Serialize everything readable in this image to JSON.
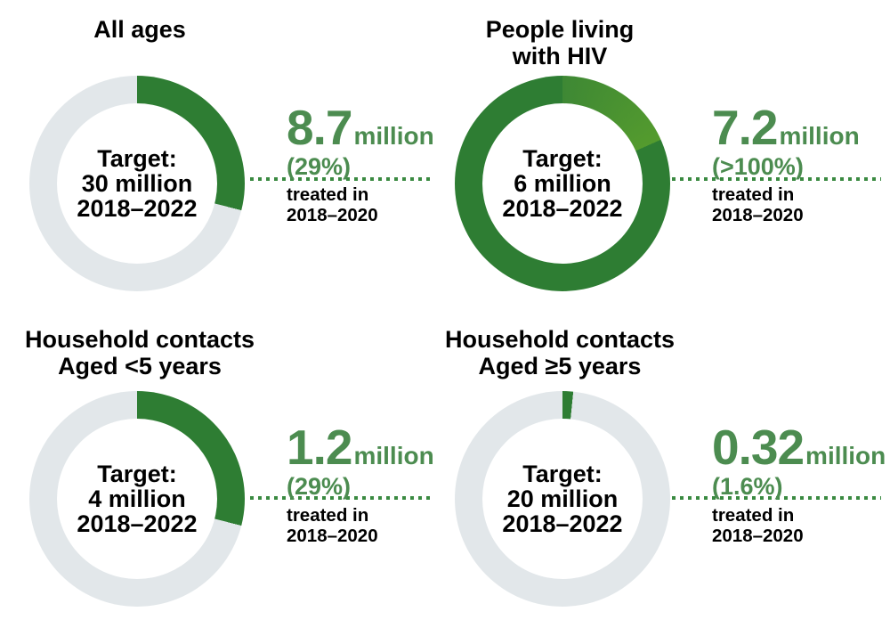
{
  "colors": {
    "arc_green_dark": "#2e7d33",
    "arc_green_light": "#549b2e",
    "arc_green_start": "#3e8834",
    "track_gray": "#e2e7ea",
    "value_green": "#4c8c50",
    "dotted_green": "#3a8a41",
    "text_black": "#000000"
  },
  "chart_data": {
    "type": "pie",
    "subtype": "donut-progress-multiples",
    "panels": [
      {
        "id": "all-ages",
        "title_lines": [
          "All ages"
        ],
        "center_lines": [
          "Target:",
          "30 million",
          "2018–2022"
        ],
        "value": "8.7",
        "unit": "million",
        "percent_label": "(29%)",
        "treated_lines": [
          "treated in",
          "2018–2020"
        ],
        "target_million": 30,
        "treated_million": 8.7,
        "percent_of_target": 29,
        "ring": {
          "mode": "partial",
          "fill_percent": 29
        }
      },
      {
        "id": "people-living-with-hiv",
        "title_lines": [
          "People living",
          "with HIV"
        ],
        "center_lines": [
          "Target:",
          "6 million",
          "2018–2022"
        ],
        "value": "7.2",
        "unit": "million",
        "percent_label": "(>100%)",
        "treated_lines": [
          "treated in",
          "2018–2020"
        ],
        "target_million": 6,
        "treated_million": 7.2,
        "percent_of_target": 120,
        "ring": {
          "mode": "overflow",
          "overflow_deg": 66
        }
      },
      {
        "id": "household-contacts-under-5",
        "title_lines": [
          "Household contacts",
          "Aged <5 years"
        ],
        "center_lines": [
          "Target:",
          "4 million",
          "2018–2022"
        ],
        "value": "1.2",
        "unit": "million",
        "percent_label": "(29%)",
        "treated_lines": [
          "treated in",
          "2018–2020"
        ],
        "target_million": 4,
        "treated_million": 1.2,
        "percent_of_target": 29,
        "ring": {
          "mode": "partial",
          "fill_percent": 29
        }
      },
      {
        "id": "household-contacts-5-and-over",
        "title_lines": [
          "Household contacts",
          "Aged ≥5 years"
        ],
        "center_lines": [
          "Target:",
          "20 million",
          "2018–2022"
        ],
        "value": "0.32",
        "unit": "million",
        "percent_label": "(1.6%)",
        "treated_lines": [
          "treated in",
          "2018–2020"
        ],
        "target_million": 20,
        "treated_million": 0.32,
        "percent_of_target": 1.6,
        "ring": {
          "mode": "partial",
          "fill_percent": 1.6
        }
      }
    ]
  }
}
